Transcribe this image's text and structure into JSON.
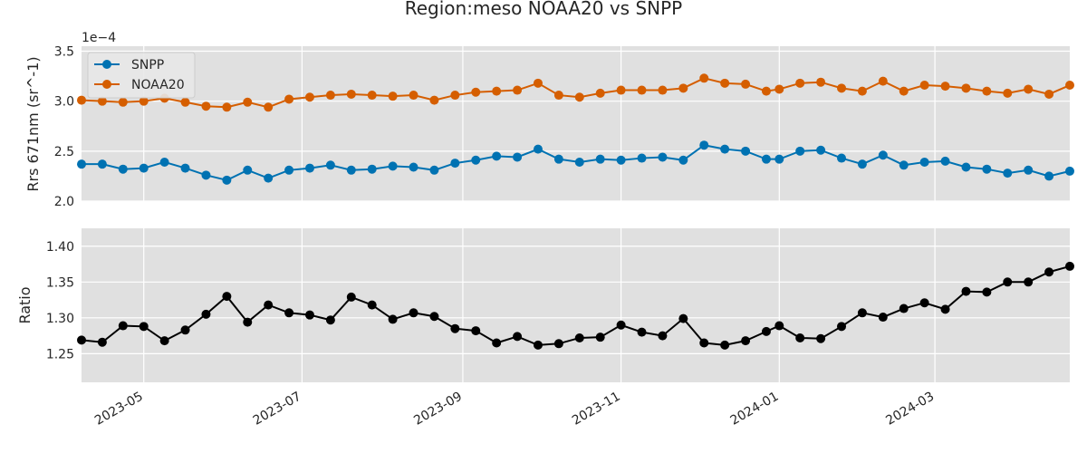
{
  "chart_data": [
    {
      "type": "line",
      "title": "Region:meso NOAA20 vs SNPP",
      "ylabel": "Rrs 671nm (sr^-1)",
      "y_offset_label": "1e−4",
      "ylim": [
        2.0,
        3.55
      ],
      "yticks": [
        2.0,
        2.5,
        3.0,
        3.5
      ],
      "ytick_labels": [
        "2.0",
        "2.5",
        "3.0",
        "3.5"
      ],
      "grid": true,
      "legend": "top-left",
      "x": [
        "2023-04-07",
        "2023-04-15",
        "2023-04-23",
        "2023-05-01",
        "2023-05-09",
        "2023-05-17",
        "2023-05-25",
        "2023-06-02",
        "2023-06-10",
        "2023-06-18",
        "2023-06-26",
        "2023-07-04",
        "2023-07-12",
        "2023-07-20",
        "2023-07-28",
        "2023-08-05",
        "2023-08-13",
        "2023-08-21",
        "2023-08-29",
        "2023-09-06",
        "2023-09-14",
        "2023-09-22",
        "2023-09-30",
        "2023-10-08",
        "2023-10-16",
        "2023-10-24",
        "2023-11-01",
        "2023-11-09",
        "2023-11-17",
        "2023-11-25",
        "2023-12-03",
        "2023-12-11",
        "2023-12-19",
        "2023-12-27",
        "2024-01-01",
        "2024-01-09",
        "2024-01-17",
        "2024-01-25",
        "2024-02-02",
        "2024-02-10",
        "2024-02-18",
        "2024-02-26",
        "2024-03-05",
        "2024-03-13",
        "2024-03-21",
        "2024-03-29",
        "2024-04-06",
        "2024-04-14",
        "2024-04-22"
      ],
      "series": [
        {
          "name": "SNPP",
          "color": "#0072B2",
          "values": [
            2.37,
            2.37,
            2.32,
            2.33,
            2.39,
            2.33,
            2.26,
            2.21,
            2.31,
            2.23,
            2.31,
            2.33,
            2.36,
            2.31,
            2.32,
            2.35,
            2.34,
            2.31,
            2.38,
            2.41,
            2.45,
            2.44,
            2.52,
            2.42,
            2.39,
            2.42,
            2.41,
            2.43,
            2.44,
            2.41,
            2.56,
            2.52,
            2.5,
            2.42,
            2.42,
            2.5,
            2.51,
            2.43,
            2.37,
            2.46,
            2.36,
            2.39,
            2.4,
            2.34,
            2.32,
            2.28,
            2.31,
            2.25,
            2.3
          ]
        },
        {
          "name": "NOAA20",
          "color": "#D55E00",
          "values": [
            3.01,
            3.0,
            2.99,
            3.0,
            3.03,
            2.99,
            2.95,
            2.94,
            2.99,
            2.94,
            3.02,
            3.04,
            3.06,
            3.07,
            3.06,
            3.05,
            3.06,
            3.01,
            3.06,
            3.09,
            3.1,
            3.11,
            3.18,
            3.06,
            3.04,
            3.08,
            3.11,
            3.11,
            3.11,
            3.13,
            3.23,
            3.18,
            3.17,
            3.1,
            3.12,
            3.18,
            3.19,
            3.13,
            3.1,
            3.2,
            3.1,
            3.16,
            3.15,
            3.13,
            3.1,
            3.08,
            3.12,
            3.07,
            3.16
          ]
        }
      ]
    },
    {
      "type": "line",
      "ylabel": "Ratio",
      "ylim": [
        1.21,
        1.425
      ],
      "yticks": [
        1.25,
        1.3,
        1.35,
        1.4
      ],
      "ytick_labels": [
        "1.25",
        "1.30",
        "1.35",
        "1.40"
      ],
      "grid": true,
      "xlim": [
        "2023-04-07",
        "2024-04-22"
      ],
      "xticks": [
        "2023-05-01",
        "2023-07-01",
        "2023-09-01",
        "2023-11-01",
        "2024-01-01",
        "2024-03-01"
      ],
      "xtick_labels": [
        "2023-05",
        "2023-07",
        "2023-09",
        "2023-11",
        "2024-01",
        "2024-03"
      ],
      "x": [
        "2023-04-07",
        "2023-04-15",
        "2023-04-23",
        "2023-05-01",
        "2023-05-09",
        "2023-05-17",
        "2023-05-25",
        "2023-06-02",
        "2023-06-10",
        "2023-06-18",
        "2023-06-26",
        "2023-07-04",
        "2023-07-12",
        "2023-07-20",
        "2023-07-28",
        "2023-08-05",
        "2023-08-13",
        "2023-08-21",
        "2023-08-29",
        "2023-09-06",
        "2023-09-14",
        "2023-09-22",
        "2023-09-30",
        "2023-10-08",
        "2023-10-16",
        "2023-10-24",
        "2023-11-01",
        "2023-11-09",
        "2023-11-17",
        "2023-11-25",
        "2023-12-03",
        "2023-12-11",
        "2023-12-19",
        "2023-12-27",
        "2024-01-01",
        "2024-01-09",
        "2024-01-17",
        "2024-01-25",
        "2024-02-02",
        "2024-02-10",
        "2024-02-18",
        "2024-02-26",
        "2024-03-05",
        "2024-03-13",
        "2024-03-21",
        "2024-03-29",
        "2024-04-06",
        "2024-04-14",
        "2024-04-22"
      ],
      "series": [
        {
          "color": "#000000",
          "values": [
            1.269,
            1.266,
            1.289,
            1.288,
            1.268,
            1.283,
            1.305,
            1.33,
            1.294,
            1.318,
            1.307,
            1.304,
            1.297,
            1.329,
            1.318,
            1.298,
            1.307,
            1.302,
            1.285,
            1.282,
            1.265,
            1.274,
            1.262,
            1.264,
            1.272,
            1.273,
            1.29,
            1.28,
            1.275,
            1.299,
            1.265,
            1.262,
            1.268,
            1.281,
            1.289,
            1.272,
            1.271,
            1.288,
            1.307,
            1.301,
            1.313,
            1.321,
            1.312,
            1.337,
            1.336,
            1.35,
            1.35,
            1.364,
            1.372
          ]
        }
      ]
    }
  ]
}
